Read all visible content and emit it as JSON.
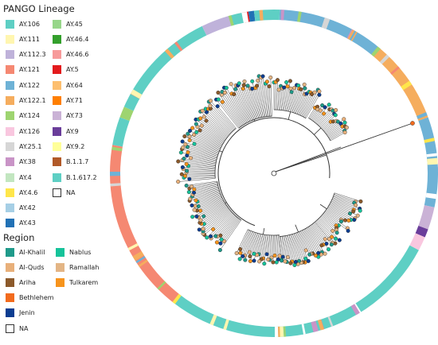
{
  "lineage_legend": {
    "title": "PANGO Lineage",
    "items": [
      {
        "label": "AY.106",
        "color": "#5ecfc4"
      },
      {
        "label": "AY.111",
        "color": "#fff6b0"
      },
      {
        "label": "AY.112.3",
        "color": "#bfb2da"
      },
      {
        "label": "AY.121",
        "color": "#f58872"
      },
      {
        "label": "AY.122",
        "color": "#6eb2d6"
      },
      {
        "label": "AY.122.1",
        "color": "#f5ad5e"
      },
      {
        "label": "AY.124",
        "color": "#9ed470"
      },
      {
        "label": "AY.126",
        "color": "#f9c7df"
      },
      {
        "label": "AY.25.1",
        "color": "#d6d6d6"
      },
      {
        "label": "AY.38",
        "color": "#c994c7"
      },
      {
        "label": "AY.4",
        "color": "#c2e6c0"
      },
      {
        "label": "AY.4.6",
        "color": "#ffe64a"
      },
      {
        "label": "AY.42",
        "color": "#a6cfe5"
      },
      {
        "label": "AY.43",
        "color": "#2171b5"
      },
      {
        "label": "AY.45",
        "color": "#97d68a"
      },
      {
        "label": "AY.46.4",
        "color": "#33a02c"
      },
      {
        "label": "AY.46.6",
        "color": "#f79a9a"
      },
      {
        "label": "AY.5",
        "color": "#e31a1c"
      },
      {
        "label": "AY.64",
        "color": "#fdbf6f"
      },
      {
        "label": "AY.71",
        "color": "#ff7f00"
      },
      {
        "label": "AY.73",
        "color": "#cab2d6"
      },
      {
        "label": "AY.9",
        "color": "#6a3d9a"
      },
      {
        "label": "AY.9.2",
        "color": "#ffff99"
      },
      {
        "label": "B.1.1.7",
        "color": "#b15928"
      },
      {
        "label": "B.1.617.2",
        "color": "#5ecfc4"
      },
      {
        "label": "NA",
        "color": "#ffffff"
      }
    ]
  },
  "region_legend": {
    "title": "Region",
    "items": [
      {
        "label": "Al-Khalil",
        "color": "#1f9a8a"
      },
      {
        "label": "Al-Quds",
        "color": "#e8b07a"
      },
      {
        "label": "Ariha",
        "color": "#8c5a2b"
      },
      {
        "label": "Bethlehem",
        "color": "#f26b1d"
      },
      {
        "label": "Jenin",
        "color": "#0b3d91"
      },
      {
        "label": "NA",
        "color": "#ffffff"
      },
      {
        "label": "Nablus",
        "color": "#16c39a"
      },
      {
        "label": "Ramallah",
        "color": "#e3b585"
      },
      {
        "label": "Tulkarem",
        "color": "#f7941d"
      }
    ]
  },
  "ring_segments": [
    {
      "lineage": "AY.122",
      "span": 38
    },
    {
      "lineage": "AY.122.1",
      "span": 30
    },
    {
      "lineage": "AY.122",
      "span": 32
    },
    {
      "lineage": "AY.73",
      "span": 8
    },
    {
      "lineage": "AY.9",
      "span": 3
    },
    {
      "lineage": "AY.126",
      "span": 5
    },
    {
      "lineage": "AY.106",
      "span": 100
    },
    {
      "lineage": "AY.121",
      "span": 62
    },
    {
      "lineage": "AY.106",
      "span": 10
    },
    {
      "lineage": "AY.124",
      "span": 4
    },
    {
      "lineage": "AY.106",
      "span": 40
    },
    {
      "lineage": "AY.112.3",
      "span": 10
    },
    {
      "lineage": "AY.106",
      "span": 5
    },
    {
      "lineage": "AY.5",
      "span": 2
    },
    {
      "lineage": "AY.43",
      "span": 2
    },
    {
      "lineage": "AY.106",
      "span": 9
    }
  ]
}
